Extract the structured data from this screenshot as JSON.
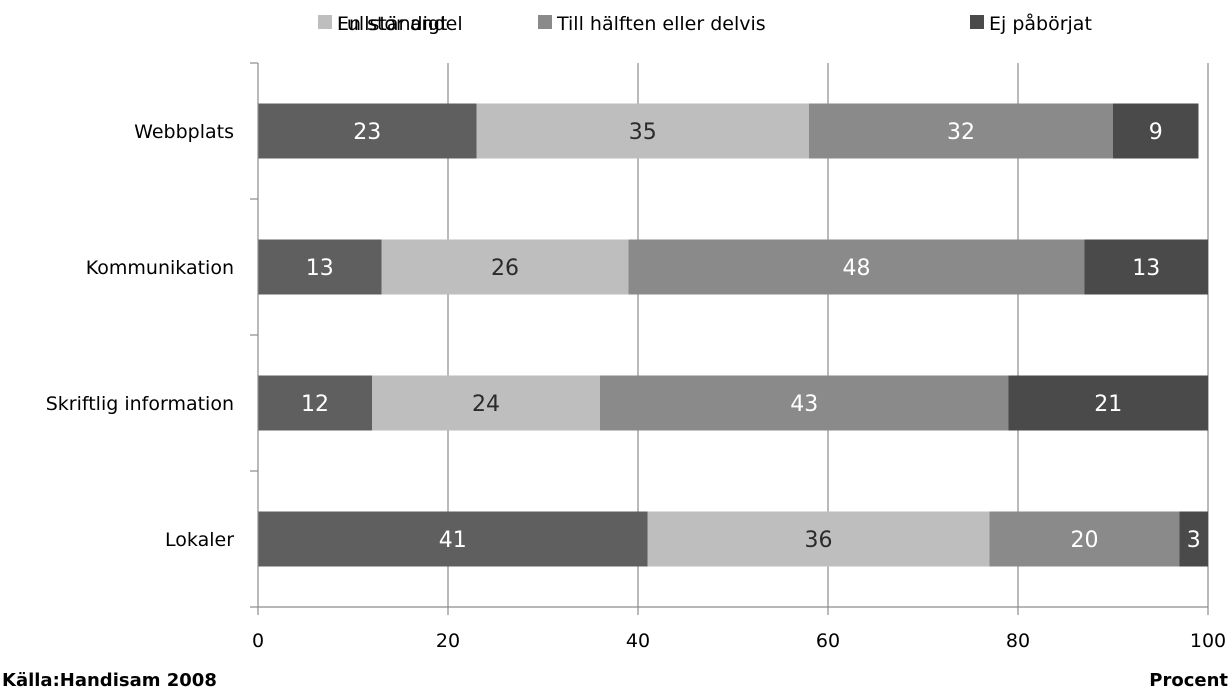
{
  "chart_data": {
    "type": "bar",
    "orientation": "horizontal",
    "stacked": true,
    "categories": [
      "Webbplats",
      "Kommunikation",
      "Skriftlig information",
      "Lokaler"
    ],
    "series": [
      {
        "name": "Fullständigt",
        "values": [
          23,
          13,
          12,
          41
        ],
        "color": "#5f5f5f",
        "label_color": "#ffffff"
      },
      {
        "name": "En stor andel",
        "values": [
          35,
          26,
          24,
          36
        ],
        "color": "#bebebe",
        "label_color": "#2a2a2a"
      },
      {
        "name": "Till hälften eller delvis",
        "values": [
          32,
          48,
          43,
          20
        ],
        "color": "#8a8a8a",
        "label_color": "#ffffff"
      },
      {
        "name": "Ej påbörjat",
        "values": [
          9,
          13,
          21,
          3
        ],
        "color": "#4a4a4a",
        "label_color": "#ffffff"
      }
    ],
    "xlim": [
      0,
      100
    ],
    "xticks": [
      "0",
      "20",
      "40",
      "60",
      "80",
      "100"
    ],
    "xlabel": "Procent",
    "legend_position": "top",
    "grid": "vertical",
    "source": "Källa:Handisam 2008"
  }
}
